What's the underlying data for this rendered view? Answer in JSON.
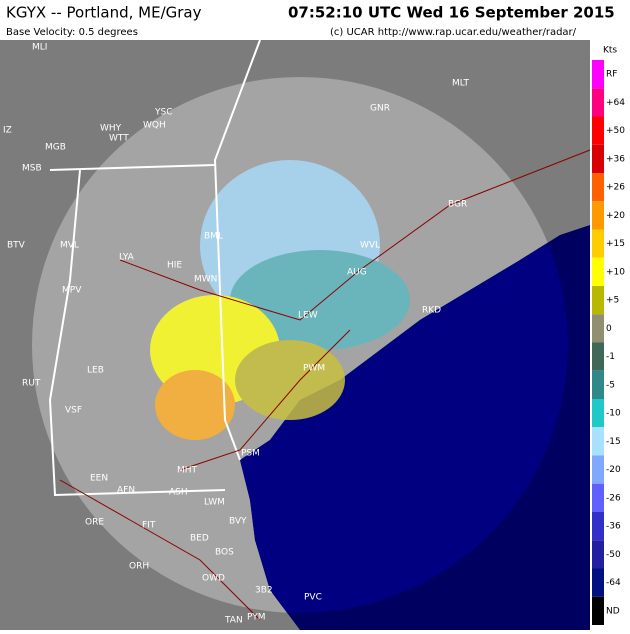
{
  "header": {
    "station": "KGYX -- Portland, ME/Gray",
    "time": "07:52:10 UTC Wed 16 September 2015",
    "product": "Base Velocity: 0.5 degrees",
    "credit": "(c) UCAR  http://www.rap.ucar.edu/weather/radar/"
  },
  "legend": {
    "unit": "Kts",
    "entries": [
      {
        "label": "RF",
        "color": "#ff00ff"
      },
      {
        "label": "+64",
        "color": "#ff0080"
      },
      {
        "label": "+50",
        "color": "#ff0000"
      },
      {
        "label": "+36",
        "color": "#d80000"
      },
      {
        "label": "+26",
        "color": "#ff6000"
      },
      {
        "label": "+20",
        "color": "#ff9900"
      },
      {
        "label": "+15",
        "color": "#ffcc00"
      },
      {
        "label": "+10",
        "color": "#ffff00"
      },
      {
        "label": "+5",
        "color": "#b8b800"
      },
      {
        "label": "0",
        "color": "#909070"
      },
      {
        "label": "-1",
        "color": "#406858"
      },
      {
        "label": "-5",
        "color": "#308888"
      },
      {
        "label": "-10",
        "color": "#20c8c8"
      },
      {
        "label": "-15",
        "color": "#a8e0ff"
      },
      {
        "label": "-20",
        "color": "#80a8ff"
      },
      {
        "label": "-26",
        "color": "#6060ff"
      },
      {
        "label": "-36",
        "color": "#3030c8"
      },
      {
        "label": "-50",
        "color": "#2020a0"
      },
      {
        "label": "-64",
        "color": "#001080"
      },
      {
        "label": "ND",
        "color": "#000000"
      }
    ]
  },
  "places": [
    "MLI",
    "MLT",
    "GNR",
    "YSC",
    "WHY",
    "WQH",
    "WTT",
    "MGB",
    "MSB",
    "IZ",
    "BGR",
    "BML",
    "MVL",
    "BTV",
    "WVL",
    "LYA",
    "HIE",
    "MWN",
    "AUG",
    "MPV",
    "LEW",
    "RKD",
    "LEB",
    "RUT",
    "PWM",
    "VSF",
    "MHT",
    "PSM",
    "EEN",
    "AFN",
    "ASH",
    "LWM",
    "BVY",
    "ORE",
    "FIT",
    "BED",
    "BOS",
    "ORH",
    "OWD",
    "3B2",
    "PVC",
    "PYM",
    "TAN"
  ]
}
